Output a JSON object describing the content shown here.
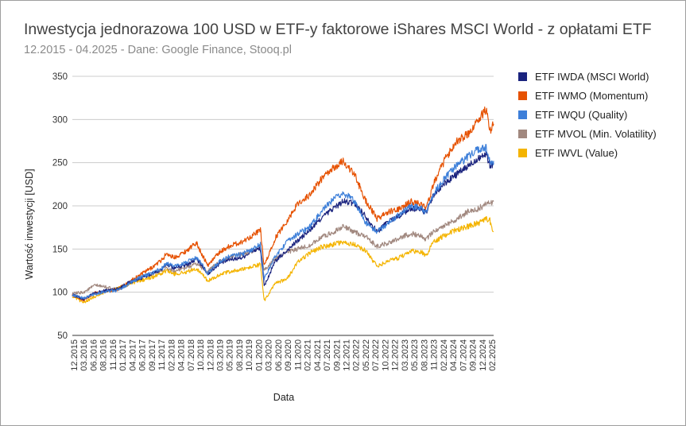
{
  "chart_data": {
    "type": "line",
    "title": "Inwestycja jednorazowa 100 USD w ETF-y faktorowe iShares MSCI World - z opłatami ETF",
    "subtitle": "12.2015 - 04.2025 - Dane: Google Finance, Stooq.pl",
    "xlabel": "Data",
    "ylabel": "Wartość inwestycji [USD]",
    "ylim": [
      50,
      350
    ],
    "yticks": [
      "50",
      "100",
      "150",
      "200",
      "250",
      "300",
      "350"
    ],
    "grid": true,
    "legend_position": "right",
    "x_tick_labels": [
      "12.2015",
      "03.2016",
      "06.2016",
      "08.2016",
      "11.2016",
      "01.2017",
      "04.2017",
      "06.2017",
      "09.2017",
      "11.2017",
      "02.2018",
      "04.2018",
      "07.2018",
      "10.2018",
      "12.2018",
      "03.2019",
      "05.2019",
      "08.2019",
      "10.2019",
      "01.2020",
      "03.2020",
      "06.2020",
      "09.2020",
      "11.2020",
      "02.2021",
      "04.2021",
      "07.2021",
      "09.2021",
      "12.2021",
      "02.2022",
      "05.2022",
      "07.2022",
      "10.2022",
      "12.2022",
      "03.2023",
      "05.2023",
      "08.2023",
      "11.2023",
      "02.2024",
      "04.2024",
      "07.2024",
      "09.2024",
      "12.2024",
      "02.2025"
    ],
    "x": [
      "12.2015",
      "03.2016",
      "06.2016",
      "09.2016",
      "12.2016",
      "03.2017",
      "06.2017",
      "09.2017",
      "12.2017",
      "01.2018",
      "03.2018",
      "06.2018",
      "09.2018",
      "10.2018",
      "12.2018",
      "03.2019",
      "06.2019",
      "09.2019",
      "12.2019",
      "02.2020",
      "03.2020",
      "06.2020",
      "09.2020",
      "12.2020",
      "03.2021",
      "06.2021",
      "09.2021",
      "12.2021",
      "03.2022",
      "06.2022",
      "09.2022",
      "12.2022",
      "03.2023",
      "06.2023",
      "09.2023",
      "10.2023",
      "12.2023",
      "03.2024",
      "06.2024",
      "09.2024",
      "12.2024",
      "02.2025",
      "03.2025",
      "04.2025"
    ],
    "series": [
      {
        "name": "ETF IWDA (MSCI World)",
        "color": "#1a237e",
        "values": [
          97,
          92,
          99,
          102,
          104,
          111,
          116,
          121,
          127,
          133,
          128,
          131,
          138,
          134,
          121,
          133,
          138,
          140,
          148,
          150,
          107,
          136,
          148,
          160,
          171,
          185,
          196,
          205,
          203,
          188,
          170,
          182,
          189,
          197,
          196,
          191,
          212,
          226,
          236,
          245,
          256,
          260,
          248,
          248
        ]
      },
      {
        "name": "ETF IWMO (Momentum)",
        "color": "#e65100",
        "values": [
          97,
          91,
          99,
          101,
          103,
          112,
          120,
          128,
          138,
          145,
          140,
          147,
          157,
          148,
          131,
          146,
          154,
          158,
          166,
          172,
          130,
          163,
          182,
          203,
          212,
          230,
          242,
          252,
          236,
          206,
          185,
          193,
          196,
          205,
          202,
          196,
          225,
          253,
          275,
          282,
          300,
          312,
          285,
          295
        ]
      },
      {
        "name": "ETF IWQU (Quality)",
        "color": "#3d7fd9",
        "values": [
          97,
          93,
          98,
          101,
          102,
          110,
          117,
          122,
          128,
          134,
          130,
          134,
          140,
          135,
          122,
          135,
          142,
          144,
          150,
          156,
          115,
          142,
          158,
          168,
          175,
          192,
          206,
          215,
          206,
          180,
          170,
          180,
          191,
          200,
          197,
          192,
          214,
          232,
          246,
          256,
          266,
          268,
          250,
          252
        ]
      },
      {
        "name": "ETF MVOL (Min. Volatility)",
        "color": "#a1887f",
        "values": [
          98,
          100,
          108,
          106,
          103,
          109,
          116,
          120,
          125,
          128,
          124,
          128,
          133,
          130,
          124,
          135,
          140,
          144,
          147,
          152,
          125,
          140,
          146,
          150,
          154,
          163,
          169,
          176,
          170,
          164,
          153,
          157,
          163,
          168,
          165,
          161,
          170,
          178,
          184,
          193,
          197,
          202,
          204,
          205
        ]
      },
      {
        "name": "ETF IWVL (Value)",
        "color": "#f4b400",
        "values": [
          95,
          88,
          95,
          101,
          104,
          110,
          113,
          117,
          122,
          125,
          121,
          123,
          127,
          124,
          113,
          120,
          124,
          126,
          130,
          132,
          90,
          110,
          115,
          135,
          145,
          152,
          155,
          158,
          155,
          148,
          130,
          136,
          140,
          148,
          146,
          142,
          158,
          166,
          172,
          176,
          180,
          185,
          183,
          170
        ]
      }
    ]
  }
}
